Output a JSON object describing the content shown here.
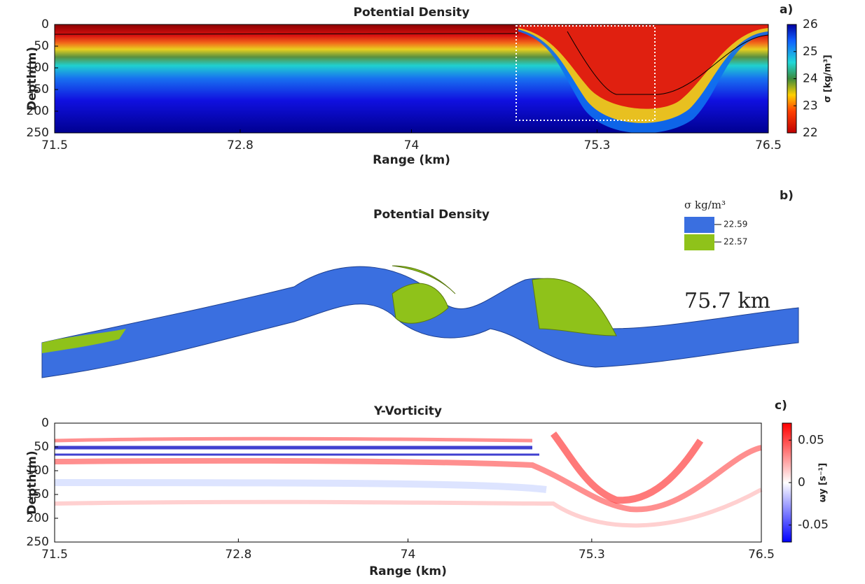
{
  "chart_data": [
    {
      "type": "heatmap",
      "panel_label": "a)",
      "title": "Potential Density",
      "xlabel": "Range (km)",
      "ylabel": "Depth(m)",
      "xlim": [
        71.5,
        76.5
      ],
      "xticks": [
        71.5,
        72.8,
        74,
        75.3,
        76.5
      ],
      "ylim": [
        250,
        0
      ],
      "yticks": [
        0,
        50,
        100,
        150,
        200,
        250
      ],
      "colorbar": {
        "label": "σ [kg/m³]",
        "clim": [
          22,
          26
        ],
        "cticks": [
          22,
          23,
          24,
          25,
          26
        ],
        "colormap": "jet-reversed"
      }
    },
    {
      "type": "isosurface",
      "panel_label": "b)",
      "title": "Potential Density",
      "legend_title": "σ kg/m³",
      "annotation": "75.7 km",
      "series": [
        {
          "name": "22.59",
          "color": "#3a6fe0"
        },
        {
          "name": "22.57",
          "color": "#8fc21a"
        }
      ]
    },
    {
      "type": "heatmap",
      "panel_label": "c)",
      "title": "Y-Vorticity",
      "xlabel": "Range (km)",
      "ylabel": "Depth(m)",
      "xlim": [
        71.5,
        76.5
      ],
      "xticks": [
        71.5,
        72.8,
        74,
        75.3,
        76.5
      ],
      "ylim": [
        250,
        0
      ],
      "yticks": [
        0,
        50,
        100,
        150,
        200,
        250
      ],
      "colorbar": {
        "label": "ωy [s⁻¹]",
        "clim": [
          -0.07,
          0.07
        ],
        "cticks": [
          -0.05,
          0,
          0.05
        ],
        "colormap": "bwr"
      }
    }
  ]
}
